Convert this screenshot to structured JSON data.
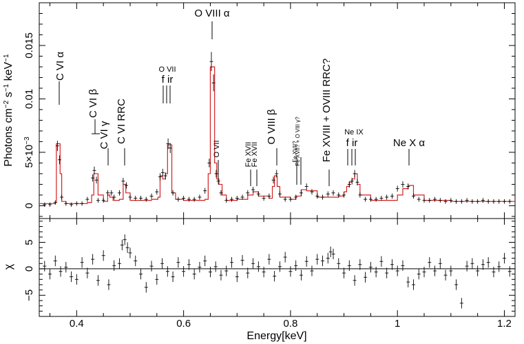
{
  "chart_data": [
    {
      "type": "line",
      "panel": "spectrum",
      "title": "",
      "xlabel": "",
      "ylabel_parts": [
        "Photons cm",
        "−2",
        " s",
        "−1",
        " keV",
        "−1"
      ],
      "xlim": [
        0.33,
        1.22
      ],
      "ylim": [
        -0.0012,
        0.019
      ],
      "yticks": [
        0,
        0.005,
        0.01,
        0.015
      ],
      "ytick_labels": [
        "0",
        "5×10",
        "0.01",
        "0.015"
      ],
      "ytick_exponent": "−3",
      "xticks": [
        0.4,
        0.6,
        0.8,
        1.0,
        1.2
      ],
      "series": [
        {
          "name": "data",
          "color": "#000000",
          "style": "crosses",
          "x": [
            0.34,
            0.35,
            0.36,
            0.364,
            0.368,
            0.372,
            0.38,
            0.39,
            0.4,
            0.41,
            0.42,
            0.43,
            0.433,
            0.437,
            0.44,
            0.45,
            0.458,
            0.465,
            0.47,
            0.48,
            0.487,
            0.493,
            0.5,
            0.51,
            0.52,
            0.53,
            0.54,
            0.55,
            0.556,
            0.561,
            0.566,
            0.571,
            0.575,
            0.58,
            0.59,
            0.6,
            0.61,
            0.62,
            0.63,
            0.64,
            0.648,
            0.652,
            0.656,
            0.661,
            0.665,
            0.67,
            0.68,
            0.69,
            0.7,
            0.71,
            0.72,
            0.73,
            0.74,
            0.75,
            0.76,
            0.768,
            0.774,
            0.78,
            0.79,
            0.8,
            0.81,
            0.82,
            0.83,
            0.84,
            0.85,
            0.86,
            0.87,
            0.88,
            0.89,
            0.9,
            0.91,
            0.915,
            0.92,
            0.925,
            0.93,
            0.94,
            0.95,
            0.96,
            0.97,
            0.98,
            0.99,
            1.0,
            1.01,
            1.02,
            1.03,
            1.04,
            1.05,
            1.06,
            1.07,
            1.08,
            1.09,
            1.1,
            1.11,
            1.12,
            1.13,
            1.14,
            1.15,
            1.16,
            1.17,
            1.18,
            1.19,
            1.2,
            1.21
          ],
          "y": [
            0.0001,
            0.0001,
            0.0003,
            0.0056,
            0.0043,
            0.0008,
            0.0002,
            0.0001,
            0.0002,
            0.0002,
            0.0006,
            0.0026,
            0.0033,
            0.0024,
            0.0005,
            0.0005,
            0.0012,
            0.0012,
            0.0008,
            0.0012,
            0.0023,
            0.0019,
            0.0008,
            0.0007,
            0.0007,
            0.0006,
            0.0009,
            0.0013,
            0.0027,
            0.0031,
            0.0028,
            0.0058,
            0.0054,
            0.0012,
            0.0006,
            0.0007,
            0.0006,
            0.0006,
            0.0008,
            0.0014,
            0.004,
            0.0135,
            0.0115,
            0.003,
            0.0023,
            0.0012,
            0.0005,
            0.0006,
            0.0007,
            0.0008,
            0.0012,
            0.0015,
            0.0011,
            0.0007,
            0.0009,
            0.0024,
            0.003,
            0.0011,
            0.0006,
            0.0006,
            0.0008,
            0.0012,
            0.0018,
            0.0013,
            0.0009,
            0.0008,
            0.0011,
            0.0012,
            0.001,
            0.001,
            0.002,
            0.0023,
            0.003,
            0.0022,
            0.001,
            0.0006,
            0.0006,
            0.0006,
            0.0007,
            0.0008,
            0.0009,
            0.0016,
            0.002,
            0.0018,
            0.0009,
            0.0006,
            0.0005,
            0.0005,
            0.0006,
            0.0005,
            0.0004,
            0.0005,
            0.0004,
            0.0004,
            0.0005,
            0.0004,
            0.0004,
            0.0005,
            0.0004,
            0.0004,
            0.0004,
            0.0004,
            0.0004
          ]
        },
        {
          "name": "model",
          "color": "#d22020",
          "style": "step",
          "x": [
            0.33,
            0.36,
            0.362,
            0.365,
            0.369,
            0.372,
            0.38,
            0.4,
            0.42,
            0.428,
            0.432,
            0.436,
            0.44,
            0.45,
            0.458,
            0.462,
            0.468,
            0.48,
            0.487,
            0.492,
            0.5,
            0.52,
            0.54,
            0.552,
            0.556,
            0.561,
            0.566,
            0.57,
            0.574,
            0.578,
            0.585,
            0.6,
            0.62,
            0.64,
            0.646,
            0.65,
            0.654,
            0.658,
            0.662,
            0.666,
            0.672,
            0.68,
            0.7,
            0.72,
            0.73,
            0.74,
            0.76,
            0.766,
            0.77,
            0.775,
            0.78,
            0.8,
            0.81,
            0.82,
            0.83,
            0.85,
            0.87,
            0.89,
            0.9,
            0.905,
            0.91,
            0.915,
            0.92,
            0.925,
            0.93,
            0.95,
            0.98,
            1.0,
            1.01,
            1.02,
            1.03,
            1.05,
            1.1,
            1.15,
            1.2,
            1.22
          ],
          "y": [
            0.0002,
            0.0003,
            0.0058,
            0.0058,
            0.003,
            0.0004,
            0.0002,
            0.0002,
            0.0003,
            0.001,
            0.003,
            0.003,
            0.001,
            0.0004,
            0.001,
            0.0008,
            0.0005,
            0.0006,
            0.002,
            0.0012,
            0.0005,
            0.0005,
            0.0006,
            0.0008,
            0.0028,
            0.0025,
            0.003,
            0.0057,
            0.0057,
            0.0012,
            0.0006,
            0.0005,
            0.0005,
            0.0006,
            0.003,
            0.013,
            0.013,
            0.004,
            0.0025,
            0.002,
            0.001,
            0.0005,
            0.0006,
            0.001,
            0.0013,
            0.0009,
            0.0007,
            0.0018,
            0.0028,
            0.0018,
            0.0008,
            0.0006,
            0.0009,
            0.0015,
            0.0014,
            0.0008,
            0.0008,
            0.0009,
            0.0013,
            0.0018,
            0.0022,
            0.0025,
            0.003,
            0.002,
            0.001,
            0.0005,
            0.0005,
            0.001,
            0.0016,
            0.0019,
            0.001,
            0.0005,
            0.0004,
            0.0004,
            0.0004,
            0.0004
          ]
        }
      ],
      "annotations": [
        {
          "text": "O VIII α",
          "x": 0.653,
          "size": "large",
          "orientation": "horizontal",
          "level": "top"
        },
        {
          "text": "C VI α",
          "x": 0.367,
          "size": "large",
          "orientation": "vertical",
          "level": "high"
        },
        {
          "text": "C VI β",
          "x": 0.436,
          "size": "large",
          "orientation": "vertical",
          "level": "mid"
        },
        {
          "text": "C VI γ",
          "x": 0.459,
          "size": "large",
          "orientation": "vertical",
          "level": "low"
        },
        {
          "text": "C VI RRC",
          "x": 0.49,
          "size": "large",
          "orientation": "vertical",
          "level": "low"
        },
        {
          "text": "O VII",
          "x": 0.565,
          "size": "small",
          "orientation": "horizontal",
          "level": "high"
        },
        {
          "text": "f ir",
          "x": 0.565,
          "size": "medium",
          "orientation": "horizontal",
          "level": "high2"
        },
        {
          "text": "O VII",
          "x": 0.665,
          "size": "medium",
          "orientation": "vertical",
          "level": "lower"
        },
        {
          "text": "Fe XVII",
          "x": 0.727,
          "size": "small",
          "orientation": "vertical",
          "level": "lower"
        },
        {
          "text": "Fe XVII",
          "x": 0.737,
          "size": "small",
          "orientation": "vertical",
          "level": "lower"
        },
        {
          "text": "O VIII β",
          "x": 0.775,
          "size": "large",
          "orientation": "vertical",
          "level": "low"
        },
        {
          "text": "Fe XVII? + O VIII γ?",
          "x": 0.81,
          "size": "tiny",
          "orientation": "vertical",
          "level": "lower"
        },
        {
          "text": "Fe XVII?",
          "x": 0.816,
          "size": "tiny",
          "orientation": "vertical",
          "level": "lower"
        },
        {
          "text": "Fe XVIII + OVIII RRC?",
          "x": 0.87,
          "size": "large",
          "orientation": "vertical",
          "level": "lower"
        },
        {
          "text": "Ne IX",
          "x": 0.913,
          "size": "small",
          "orientation": "horizontal",
          "level": "mid"
        },
        {
          "text": "f ir",
          "x": 0.913,
          "size": "medium",
          "orientation": "horizontal",
          "level": "mid2"
        },
        {
          "text": "Ne X α",
          "x": 1.022,
          "size": "medium",
          "orientation": "horizontal",
          "level": "mid"
        }
      ]
    },
    {
      "type": "scatter",
      "panel": "residuals",
      "xlabel": "Energy[keV]",
      "ylabel": "χ",
      "xlim": [
        0.33,
        1.22
      ],
      "ylim": [
        -9,
        9.5
      ],
      "yticks": [
        -5,
        0,
        5
      ],
      "ytick_labels": [
        "−5",
        "0",
        "5"
      ],
      "xticks": [
        0.4,
        0.6,
        0.8,
        1.0,
        1.2
      ],
      "xtick_labels": [
        "0.4",
        "0.6",
        "0.8",
        "1",
        "1.2"
      ],
      "zero_line": true,
      "series": [
        {
          "name": "residuals",
          "color": "#000000",
          "style": "crosses",
          "x": [
            0.34,
            0.35,
            0.36,
            0.37,
            0.38,
            0.39,
            0.4,
            0.41,
            0.42,
            0.43,
            0.44,
            0.45,
            0.46,
            0.47,
            0.48,
            0.485,
            0.49,
            0.495,
            0.5,
            0.51,
            0.52,
            0.53,
            0.54,
            0.55,
            0.56,
            0.57,
            0.58,
            0.59,
            0.6,
            0.61,
            0.62,
            0.63,
            0.64,
            0.65,
            0.66,
            0.67,
            0.68,
            0.69,
            0.7,
            0.71,
            0.72,
            0.73,
            0.74,
            0.75,
            0.76,
            0.77,
            0.78,
            0.79,
            0.8,
            0.81,
            0.82,
            0.83,
            0.84,
            0.85,
            0.86,
            0.87,
            0.875,
            0.88,
            0.89,
            0.9,
            0.91,
            0.92,
            0.93,
            0.94,
            0.95,
            0.96,
            0.97,
            0.98,
            0.99,
            1.0,
            1.01,
            1.02,
            1.03,
            1.04,
            1.05,
            1.06,
            1.07,
            1.08,
            1.09,
            1.1,
            1.11,
            1.12,
            1.13,
            1.14,
            1.15,
            1.16,
            1.17,
            1.18,
            1.19,
            1.2,
            1.21
          ],
          "y": [
            0.5,
            -1.0,
            1.5,
            -0.5,
            0.3,
            -1.5,
            -2.0,
            1.2,
            -0.8,
            1.8,
            -2.2,
            2.5,
            -3.0,
            0.6,
            1.0,
            4.5,
            5.5,
            4.0,
            3.0,
            1.5,
            -1.0,
            -3.5,
            0.5,
            -2.0,
            1.0,
            -0.5,
            -1.5,
            1.2,
            -0.5,
            0.8,
            -1.0,
            0.3,
            1.5,
            -0.6,
            0.4,
            -1.2,
            -0.4,
            1.2,
            -1.5,
            1.6,
            -0.8,
            1.0,
            0.4,
            -0.6,
            1.8,
            -1.4,
            0.4,
            2.2,
            -0.5,
            0.6,
            -1.2,
            1.4,
            -0.4,
            1.8,
            1.5,
            2.0,
            3.2,
            2.8,
            1.0,
            -0.8,
            0.6,
            -2.2,
            0.8,
            -1.6,
            0.3,
            -0.6,
            1.4,
            -0.8,
            0.8,
            -0.4,
            0.6,
            -2.5,
            -3.0,
            -1.0,
            -0.6,
            1.2,
            -0.4,
            1.0,
            -1.2,
            -0.4,
            -3.0,
            -6.5,
            0.5,
            1.0,
            -0.4,
            0.8,
            1.2,
            -0.6,
            0.4,
            2.0,
            -0.5
          ]
        }
      ]
    }
  ]
}
